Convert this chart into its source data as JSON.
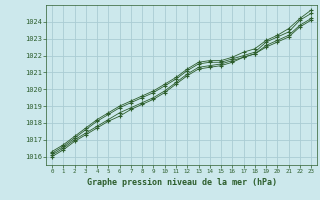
{
  "title": "Graphe pression niveau de la mer (hPa)",
  "background_color": "#cce8ec",
  "grid_color": "#aaccd4",
  "line_color": "#2d5e2d",
  "marker_color": "#2d5e2d",
  "text_color": "#2d5e2d",
  "xlim": [
    -0.5,
    23.5
  ],
  "ylim": [
    1015.5,
    1025.0
  ],
  "xticks": [
    0,
    1,
    2,
    3,
    4,
    5,
    6,
    7,
    8,
    9,
    10,
    11,
    12,
    13,
    14,
    15,
    16,
    17,
    18,
    19,
    20,
    21,
    22,
    23
  ],
  "yticks": [
    1016,
    1017,
    1018,
    1019,
    1020,
    1021,
    1022,
    1023,
    1024
  ],
  "series": [
    [
      1016.2,
      1016.6,
      1017.1,
      1017.6,
      1018.1,
      1018.5,
      1018.9,
      1019.2,
      1019.5,
      1019.8,
      1020.2,
      1020.6,
      1021.1,
      1021.5,
      1021.6,
      1021.6,
      1021.8,
      1022.0,
      1022.2,
      1022.8,
      1023.1,
      1023.4,
      1024.1,
      1024.5
    ],
    [
      1016.1,
      1016.5,
      1017.0,
      1017.4,
      1017.8,
      1018.2,
      1018.6,
      1018.9,
      1019.2,
      1019.5,
      1019.9,
      1020.4,
      1020.9,
      1021.3,
      1021.4,
      1021.5,
      1021.7,
      1021.9,
      1022.1,
      1022.6,
      1022.9,
      1023.2,
      1023.8,
      1024.2
    ],
    [
      1016.3,
      1016.7,
      1017.2,
      1017.7,
      1018.2,
      1018.6,
      1019.0,
      1019.3,
      1019.6,
      1019.9,
      1020.3,
      1020.7,
      1021.2,
      1021.6,
      1021.7,
      1021.7,
      1021.9,
      1022.2,
      1022.4,
      1022.9,
      1023.2,
      1023.6,
      1024.2,
      1024.7
    ],
    [
      1016.0,
      1016.4,
      1016.9,
      1017.3,
      1017.7,
      1018.1,
      1018.4,
      1018.8,
      1019.1,
      1019.4,
      1019.8,
      1020.3,
      1020.8,
      1021.2,
      1021.3,
      1021.4,
      1021.6,
      1021.9,
      1022.1,
      1022.5,
      1022.8,
      1023.1,
      1023.7,
      1024.1
    ]
  ]
}
